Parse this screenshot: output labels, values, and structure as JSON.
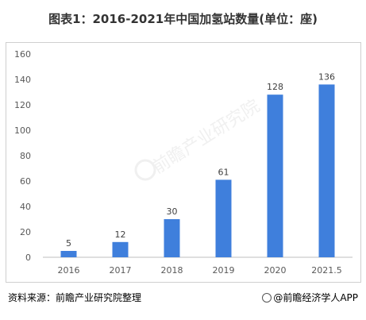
{
  "title": "图表1：2016-2021年中国加氢站数量(单位：座)",
  "source_text": "资料来源：前瞻产业研究院整理",
  "brand_text": "@前瞻经济学人APP",
  "watermark_text": "前瞻产业研究院",
  "colors": {
    "bar": "#3f7fdc",
    "grid": "#d9d9d9",
    "axis_text": "#595959"
  },
  "chart_data": {
    "type": "bar",
    "title": "图表1：2016-2021年中国加氢站数量(单位：座)",
    "categories": [
      "2016",
      "2017",
      "2018",
      "2019",
      "2020",
      "2021.5"
    ],
    "values": [
      5,
      12,
      30,
      61,
      128,
      136
    ],
    "ylim": [
      0,
      160
    ],
    "yticks": [
      0,
      20,
      40,
      60,
      80,
      100,
      120,
      140,
      160
    ],
    "grid": false,
    "data_labels": true,
    "legend": "none"
  }
}
